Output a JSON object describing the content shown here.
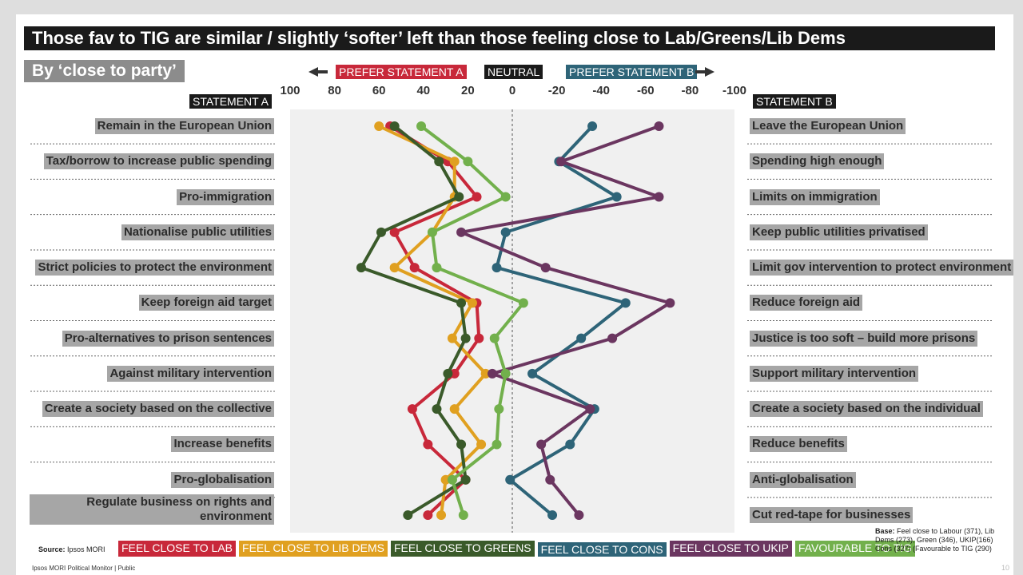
{
  "chart_data": {
    "type": "line",
    "orientation": "horizontal",
    "title": "Those fav to TIG are similar / slightly ‘softer’ left than those feeling close to Lab/Greens/Lib Dems",
    "subtitle": "By ‘close to party’",
    "direction_a": "PREFER STATEMENT A",
    "direction_neutral": "NEUTRAL",
    "direction_b": "PREFER STATEMENT B",
    "statement_a": "STATEMENT A",
    "statement_b": "STATEMENT B",
    "categories": [
      "Remain in the European Union",
      "Tax/borrow to increase public spending",
      "Pro-immigration",
      "Nationalise public utilities",
      "Strict policies to protect the environment",
      "Keep foreign aid target",
      "Pro-alternatives to prison sentences",
      "Against military intervention",
      "Create a society based on the collective",
      "Increase benefits",
      "Pro-globalisation",
      "Regulate business on rights and environment"
    ],
    "categories_b": [
      "Leave the European Union",
      "Spending high enough",
      "Limits on immigration",
      "Keep public utilities privatised",
      "Limit gov intervention to protect environment",
      "Reduce foreign aid",
      "Justice is too soft – build more prisons",
      "Support military intervention",
      "Create a society based on the individual",
      "Reduce benefits",
      "Anti-globalisation",
      "Cut red-tape for businesses"
    ],
    "xlim": [
      100,
      -100
    ],
    "xticks": [
      100,
      80,
      60,
      40,
      20,
      0,
      -20,
      -40,
      -60,
      -80,
      -100
    ],
    "series": [
      {
        "name": "FEEL CLOSE TO LAB",
        "color": "#c8283a",
        "values": [
          55,
          29,
          16,
          53,
          44,
          16,
          15,
          26,
          45,
          38,
          21,
          38
        ]
      },
      {
        "name": "FEEL CLOSE TO LIB DEMS",
        "color": "#e0a020",
        "values": [
          60,
          26,
          26,
          36,
          53,
          18,
          27,
          12,
          26,
          14,
          30,
          32
        ]
      },
      {
        "name": "FEEL CLOSE TO GREENS",
        "color": "#3a5a2a",
        "values": [
          53,
          33,
          24,
          59,
          68,
          23,
          21,
          29,
          34,
          23,
          21,
          47
        ]
      },
      {
        "name": "FEEL CLOSE TO CONS",
        "color": "#2e6478",
        "values": [
          -36,
          -21,
          -47,
          3,
          7,
          -51,
          -31,
          -9,
          -37,
          -26,
          1,
          -18
        ]
      },
      {
        "name": "FEEL CLOSE TO UKIP",
        "color": "#6b3660",
        "values": [
          -66,
          -22,
          -66,
          23,
          -15,
          -71,
          -45,
          9,
          -35,
          -13,
          -17,
          -30
        ]
      },
      {
        "name": "FAVOURABLE TO TIG",
        "color": "#72b04c",
        "values": [
          41,
          20,
          3,
          36,
          34,
          -5,
          8,
          3,
          6,
          7,
          27,
          22
        ]
      }
    ],
    "source_label": "Source:",
    "source": "Ipsos MORI",
    "base_label": "Base:",
    "base": "Feel close to Labour (371), Lib Dems (273), Green (346), UKIP(166) Cons (327) (Favourable to TIG (290)",
    "footer": "Ipsos MORI Political Monitor | Public",
    "page_number": "10"
  }
}
